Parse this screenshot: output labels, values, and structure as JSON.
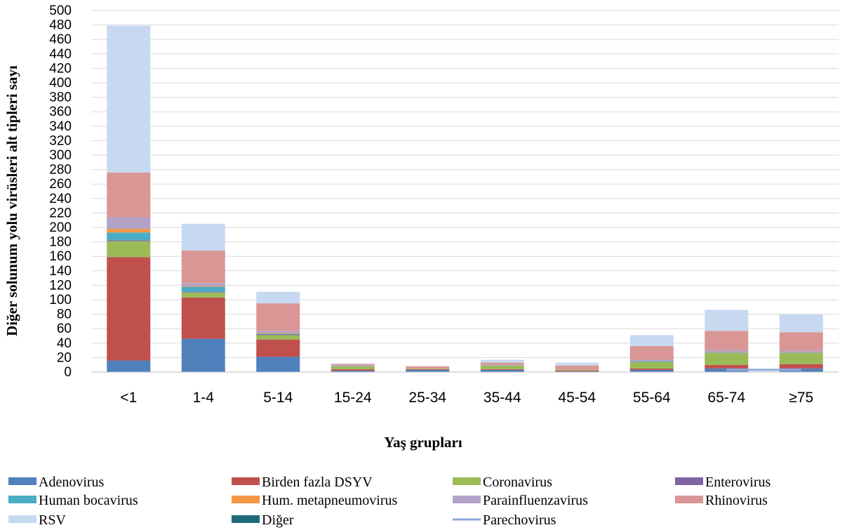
{
  "chart_data": {
    "type": "bar",
    "stacked": true,
    "xlabel": "Yaş grupları",
    "ylabel": "Diğer solunum yolu virüsleri alt tipleri sayı",
    "ylim": [
      0,
      500
    ],
    "ytick_step": 20,
    "grid": true,
    "legend_position": "bottom",
    "categories": [
      "<1",
      "1-4",
      "5-14",
      "15-24",
      "25-34",
      "35-44",
      "45-54",
      "55-64",
      "65-74",
      "≥75"
    ],
    "series": [
      {
        "name": "Adenovirus",
        "color": "#4f81bd",
        "values": [
          16,
          46,
          21,
          2,
          3,
          3,
          1,
          3,
          5,
          5
        ]
      },
      {
        "name": "Birden fazla DSYV",
        "color": "#c0504d",
        "values": [
          143,
          57,
          24,
          2,
          1,
          1,
          1,
          2,
          5,
          6
        ]
      },
      {
        "name": "Coronavirus",
        "color": "#9bbb59",
        "values": [
          22,
          7,
          6,
          4,
          1,
          5,
          1,
          9,
          16,
          15
        ]
      },
      {
        "name": "Enterovirus",
        "color": "#8064a2",
        "values": [
          1,
          1,
          1,
          0,
          0,
          0,
          0,
          0,
          0,
          0
        ]
      },
      {
        "name": "Human bocavirus",
        "color": "#4bacc6",
        "values": [
          11,
          7,
          1,
          0,
          0,
          0,
          0,
          1,
          1,
          1
        ]
      },
      {
        "name": "Hum. metapneumovirus",
        "color": "#f79646",
        "values": [
          5,
          1,
          1,
          0,
          0,
          0,
          0,
          0,
          1,
          1
        ]
      },
      {
        "name": "Parainfluenzavirus",
        "color": "#b3a2c7",
        "values": [
          16,
          4,
          3,
          1,
          0,
          1,
          0,
          2,
          3,
          2
        ]
      },
      {
        "name": "Rhinovirus",
        "color": "#d99694",
        "values": [
          62,
          45,
          38,
          2,
          3,
          3,
          6,
          19,
          26,
          25
        ]
      },
      {
        "name": "RSV",
        "color": "#c6d9f1",
        "values": [
          203,
          37,
          16,
          1,
          0,
          4,
          4,
          15,
          29,
          25
        ]
      },
      {
        "name": "Diğer",
        "color": "#1f6b7a",
        "values": [
          0,
          0,
          0,
          0,
          0,
          0,
          0,
          0,
          0,
          0
        ]
      }
    ],
    "line_series": [
      {
        "name": "Parechovirus",
        "color": "#8eaadb",
        "values": [
          0,
          0,
          0,
          0,
          0,
          0,
          0,
          0,
          3,
          3
        ],
        "visible_from": 8
      }
    ]
  }
}
